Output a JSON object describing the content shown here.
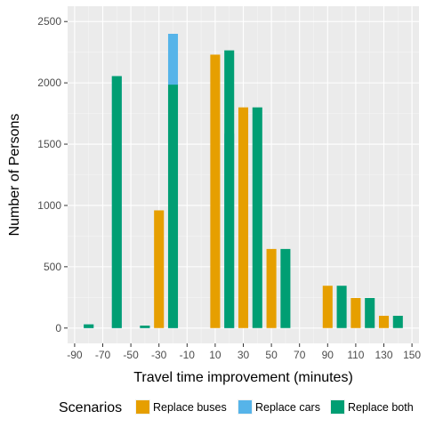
{
  "chart_data": {
    "type": "bar",
    "title": "",
    "xlabel": "Travel time improvement (minutes)",
    "ylabel": "Number of Persons",
    "x_ticks": [
      -90,
      -70,
      -50,
      -30,
      -10,
      10,
      30,
      50,
      70,
      90,
      110,
      130,
      150
    ],
    "y_ticks": [
      0,
      500,
      1000,
      1500,
      2000,
      2500
    ],
    "xlim": [
      -95,
      155
    ],
    "ylim": [
      -125,
      2625
    ],
    "grid": true,
    "legend": {
      "title": "Scenarios",
      "position": "bottom"
    },
    "series": [
      {
        "name": "Replace buses",
        "color": "#E69F00",
        "points": [
          {
            "x": -30,
            "y": 960
          },
          {
            "x": 10,
            "y": 2230
          },
          {
            "x": 30,
            "y": 1800
          },
          {
            "x": 50,
            "y": 645
          },
          {
            "x": 90,
            "y": 345
          },
          {
            "x": 110,
            "y": 245
          },
          {
            "x": 130,
            "y": 100
          }
        ]
      },
      {
        "name": "Replace cars",
        "color": "#56B4E9",
        "points": [
          {
            "x": -80,
            "y": 30
          },
          {
            "x": -60,
            "y": 2055
          },
          {
            "x": -40,
            "y": 20
          },
          {
            "x": -20,
            "y": 2400
          },
          {
            "x": 20,
            "y": 1585
          }
        ]
      },
      {
        "name": "Replace both",
        "color": "#009E73",
        "points": [
          {
            "x": -80,
            "y": 30
          },
          {
            "x": -60,
            "y": 2055
          },
          {
            "x": -40,
            "y": 20
          },
          {
            "x": -20,
            "y": 1985
          },
          {
            "x": 20,
            "y": 2265
          },
          {
            "x": 40,
            "y": 1800
          },
          {
            "x": 60,
            "y": 645
          },
          {
            "x": 100,
            "y": 345
          },
          {
            "x": 120,
            "y": 245
          },
          {
            "x": 140,
            "y": 100
          }
        ]
      }
    ]
  }
}
